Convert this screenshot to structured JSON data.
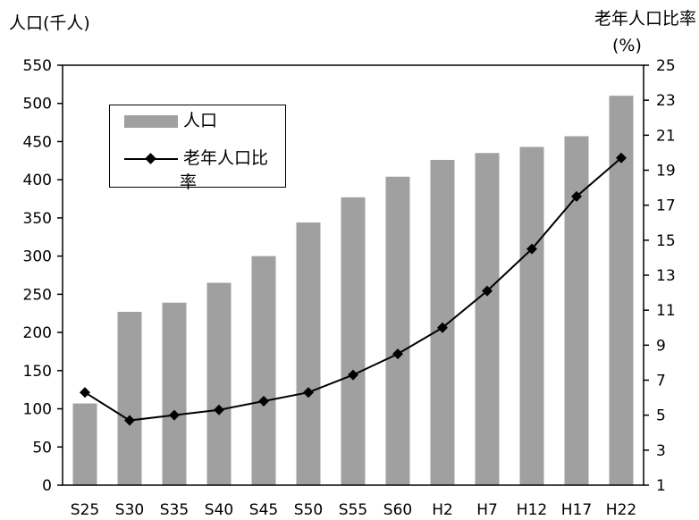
{
  "chart_data": {
    "type": "bar+line",
    "categories": [
      "S25",
      "S30",
      "S35",
      "S40",
      "S45",
      "S50",
      "S55",
      "S60",
      "H2",
      "H7",
      "H12",
      "H17",
      "H22"
    ],
    "series": [
      {
        "name": "人口",
        "type": "bar",
        "axis": "left",
        "values": [
          107,
          227,
          239,
          265,
          300,
          344,
          377,
          404,
          426,
          435,
          443,
          457,
          510
        ]
      },
      {
        "name": "老年人口比率",
        "type": "line",
        "axis": "right",
        "marker": "diamond",
        "values": [
          6.3,
          4.7,
          5.0,
          5.3,
          5.8,
          6.3,
          7.3,
          8.5,
          10.0,
          12.1,
          14.5,
          17.5,
          19.7
        ]
      }
    ],
    "ylabel_left": "人口(千人)",
    "ylabel_right": "老年人口比率",
    "ylabel_right_unit": "(%)",
    "ylim_left": [
      0,
      550
    ],
    "yticks_left": [
      "0",
      "50",
      "100",
      "150",
      "200",
      "250",
      "300",
      "350",
      "400",
      "450",
      "500",
      "550"
    ],
    "ylim_right": [
      1,
      25
    ],
    "yticks_right": [
      "1",
      "3",
      "5",
      "7",
      "9",
      "11",
      "13",
      "15",
      "17",
      "19",
      "21",
      "23",
      "25"
    ],
    "legend_labels": {
      "bar": "人口",
      "line_line1": "老年人口比",
      "line_line2": "率"
    },
    "legend_position": "top-left",
    "grid": false,
    "colors": {
      "bar": "#a0a0a0",
      "line": "#000000"
    }
  }
}
